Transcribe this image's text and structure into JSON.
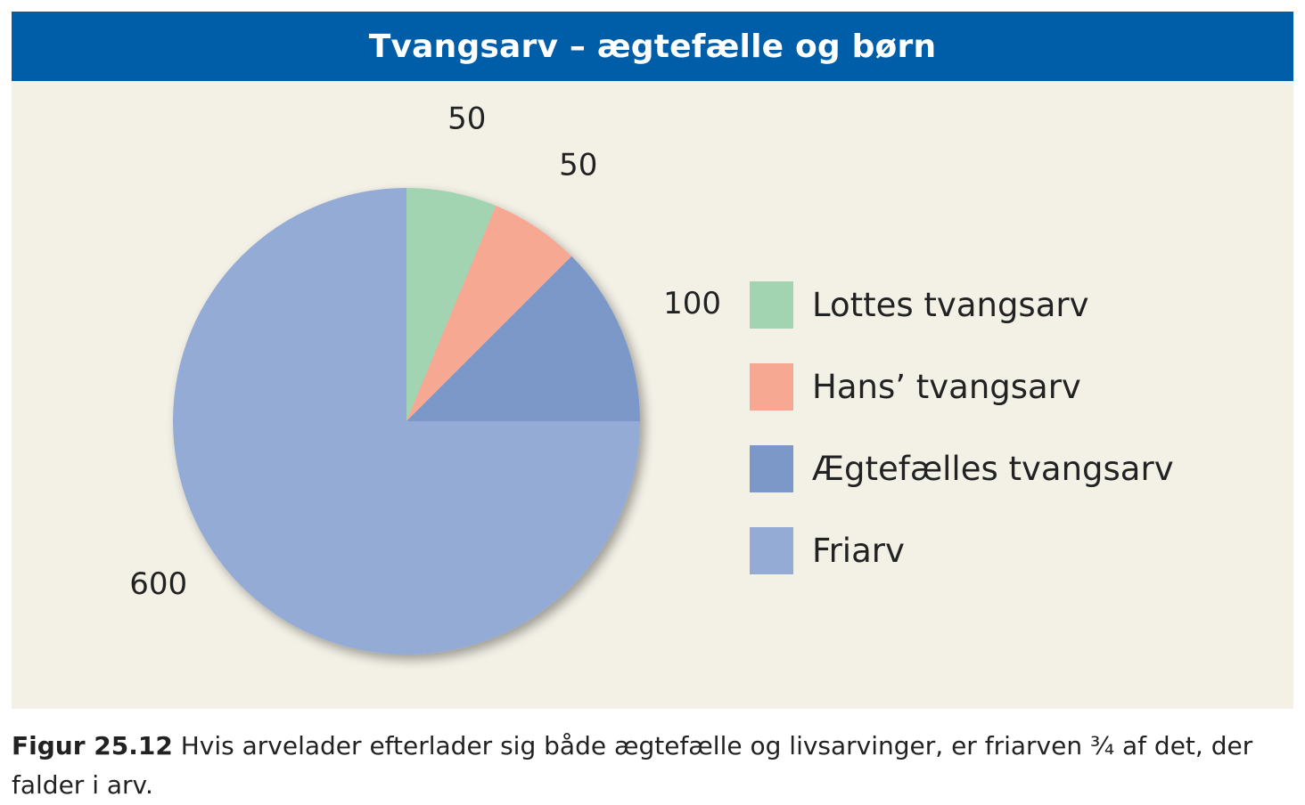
{
  "chart_data": {
    "type": "pie",
    "title": "Tvangsarv – ægtefælle og børn",
    "slices": [
      {
        "label": "Lottes tvangsarv",
        "value": 50,
        "color": "#a3d4b1"
      },
      {
        "label": "Hans’ tvangsarv",
        "value": 50,
        "color": "#f6a893"
      },
      {
        "label": "Ægtefælles tvangsarv",
        "value": 100,
        "color": "#7b98c9"
      },
      {
        "label": "Friarv",
        "value": 600,
        "color": "#93abd5"
      }
    ],
    "legend_position": "right",
    "start": "top, clockwise"
  },
  "caption": {
    "figure_label": "Figur 25.12",
    "text": " Hvis arvelader efterlader sig både ægtefælle og livsarvinger, er friarven ¾ af det, der falder i arv."
  },
  "colors": {
    "header": "#005ea8",
    "panel": "#f3f1e6"
  }
}
